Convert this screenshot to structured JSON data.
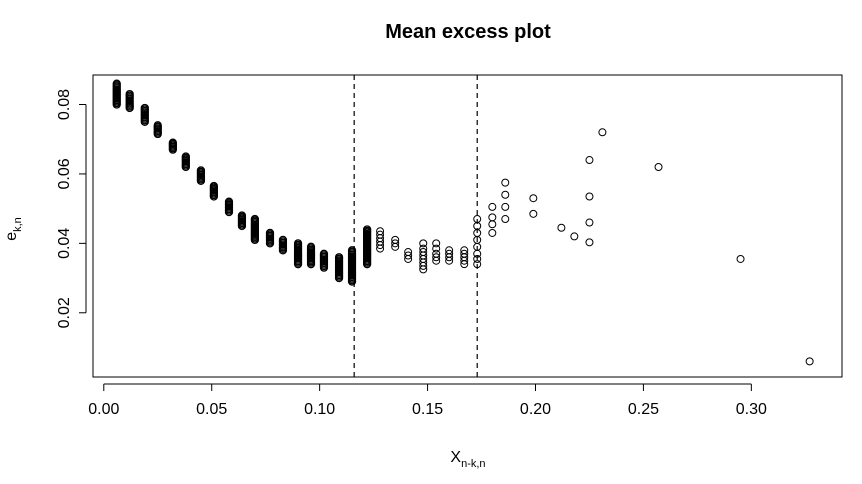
{
  "chart_data": {
    "type": "scatter",
    "title": "Mean excess plot",
    "xlabel": {
      "base": "X",
      "sub": "n-k,n"
    },
    "ylabel": {
      "base": "e",
      "sub": "k,n"
    },
    "xlim": [
      -0.005,
      0.342
    ],
    "ylim": [
      0.0015,
      0.0885
    ],
    "x_ticks": [
      0.0,
      0.05,
      0.1,
      0.15,
      0.2,
      0.25,
      0.3
    ],
    "x_tick_labels": [
      "0.00",
      "0.05",
      "0.10",
      "0.15",
      "0.20",
      "0.25",
      "0.30"
    ],
    "y_ticks": [
      0.02,
      0.04,
      0.06,
      0.08
    ],
    "y_tick_labels": [
      "0.02",
      "0.04",
      "0.06",
      "0.08"
    ],
    "vlines": [
      0.116,
      0.173
    ],
    "vline_style": "dashed",
    "marker": "open-circle",
    "grid": false,
    "dense_clusters": [
      {
        "x": 0.006,
        "y_min": 0.08,
        "y_max": 0.086
      },
      {
        "x": 0.012,
        "y_min": 0.079,
        "y_max": 0.083
      },
      {
        "x": 0.019,
        "y_min": 0.075,
        "y_max": 0.079
      },
      {
        "x": 0.025,
        "y_min": 0.0715,
        "y_max": 0.074
      },
      {
        "x": 0.032,
        "y_min": 0.067,
        "y_max": 0.069
      },
      {
        "x": 0.038,
        "y_min": 0.062,
        "y_max": 0.065
      },
      {
        "x": 0.045,
        "y_min": 0.058,
        "y_max": 0.061
      },
      {
        "x": 0.051,
        "y_min": 0.0535,
        "y_max": 0.0565
      },
      {
        "x": 0.058,
        "y_min": 0.049,
        "y_max": 0.052
      },
      {
        "x": 0.064,
        "y_min": 0.045,
        "y_max": 0.048
      },
      {
        "x": 0.07,
        "y_min": 0.041,
        "y_max": 0.047
      },
      {
        "x": 0.077,
        "y_min": 0.04,
        "y_max": 0.043
      },
      {
        "x": 0.083,
        "y_min": 0.038,
        "y_max": 0.041
      },
      {
        "x": 0.09,
        "y_min": 0.034,
        "y_max": 0.04
      },
      {
        "x": 0.096,
        "y_min": 0.034,
        "y_max": 0.039
      },
      {
        "x": 0.102,
        "y_min": 0.033,
        "y_max": 0.037
      },
      {
        "x": 0.109,
        "y_min": 0.03,
        "y_max": 0.036
      },
      {
        "x": 0.115,
        "y_min": 0.029,
        "y_max": 0.038
      },
      {
        "x": 0.122,
        "y_min": 0.034,
        "y_max": 0.044
      }
    ],
    "points": [
      {
        "x": 0.122,
        "y": 0.0435
      },
      {
        "x": 0.122,
        "y": 0.0425
      },
      {
        "x": 0.122,
        "y": 0.0415
      },
      {
        "x": 0.128,
        "y": 0.0435
      },
      {
        "x": 0.128,
        "y": 0.0425
      },
      {
        "x": 0.128,
        "y": 0.0415
      },
      {
        "x": 0.128,
        "y": 0.0405
      },
      {
        "x": 0.128,
        "y": 0.0395
      },
      {
        "x": 0.128,
        "y": 0.0385
      },
      {
        "x": 0.135,
        "y": 0.041
      },
      {
        "x": 0.135,
        "y": 0.04
      },
      {
        "x": 0.135,
        "y": 0.039
      },
      {
        "x": 0.141,
        "y": 0.0375
      },
      {
        "x": 0.141,
        "y": 0.0365
      },
      {
        "x": 0.141,
        "y": 0.0355
      },
      {
        "x": 0.148,
        "y": 0.04
      },
      {
        "x": 0.148,
        "y": 0.0385
      },
      {
        "x": 0.148,
        "y": 0.0375
      },
      {
        "x": 0.148,
        "y": 0.0365
      },
      {
        "x": 0.148,
        "y": 0.0355
      },
      {
        "x": 0.148,
        "y": 0.0345
      },
      {
        "x": 0.148,
        "y": 0.0335
      },
      {
        "x": 0.148,
        "y": 0.0325
      },
      {
        "x": 0.154,
        "y": 0.04
      },
      {
        "x": 0.154,
        "y": 0.0385
      },
      {
        "x": 0.154,
        "y": 0.037
      },
      {
        "x": 0.154,
        "y": 0.036
      },
      {
        "x": 0.154,
        "y": 0.035
      },
      {
        "x": 0.16,
        "y": 0.038
      },
      {
        "x": 0.16,
        "y": 0.037
      },
      {
        "x": 0.16,
        "y": 0.036
      },
      {
        "x": 0.16,
        "y": 0.035
      },
      {
        "x": 0.167,
        "y": 0.038
      },
      {
        "x": 0.167,
        "y": 0.037
      },
      {
        "x": 0.167,
        "y": 0.036
      },
      {
        "x": 0.167,
        "y": 0.035
      },
      {
        "x": 0.167,
        "y": 0.034
      },
      {
        "x": 0.173,
        "y": 0.047
      },
      {
        "x": 0.173,
        "y": 0.045
      },
      {
        "x": 0.173,
        "y": 0.043
      },
      {
        "x": 0.173,
        "y": 0.041
      },
      {
        "x": 0.173,
        "y": 0.039
      },
      {
        "x": 0.173,
        "y": 0.037
      },
      {
        "x": 0.173,
        "y": 0.0355
      },
      {
        "x": 0.173,
        "y": 0.034
      },
      {
        "x": 0.18,
        "y": 0.0505
      },
      {
        "x": 0.18,
        "y": 0.0475
      },
      {
        "x": 0.18,
        "y": 0.0455
      },
      {
        "x": 0.18,
        "y": 0.043
      },
      {
        "x": 0.186,
        "y": 0.0575
      },
      {
        "x": 0.186,
        "y": 0.054
      },
      {
        "x": 0.186,
        "y": 0.0505
      },
      {
        "x": 0.186,
        "y": 0.047
      },
      {
        "x": 0.199,
        "y": 0.053
      },
      {
        "x": 0.199,
        "y": 0.0485
      },
      {
        "x": 0.212,
        "y": 0.0445
      },
      {
        "x": 0.218,
        "y": 0.042
      },
      {
        "x": 0.225,
        "y": 0.064
      },
      {
        "x": 0.225,
        "y": 0.0535
      },
      {
        "x": 0.225,
        "y": 0.046
      },
      {
        "x": 0.225,
        "y": 0.0403
      },
      {
        "x": 0.231,
        "y": 0.072
      },
      {
        "x": 0.257,
        "y": 0.062
      },
      {
        "x": 0.295,
        "y": 0.0355
      },
      {
        "x": 0.327,
        "y": 0.006
      }
    ]
  }
}
